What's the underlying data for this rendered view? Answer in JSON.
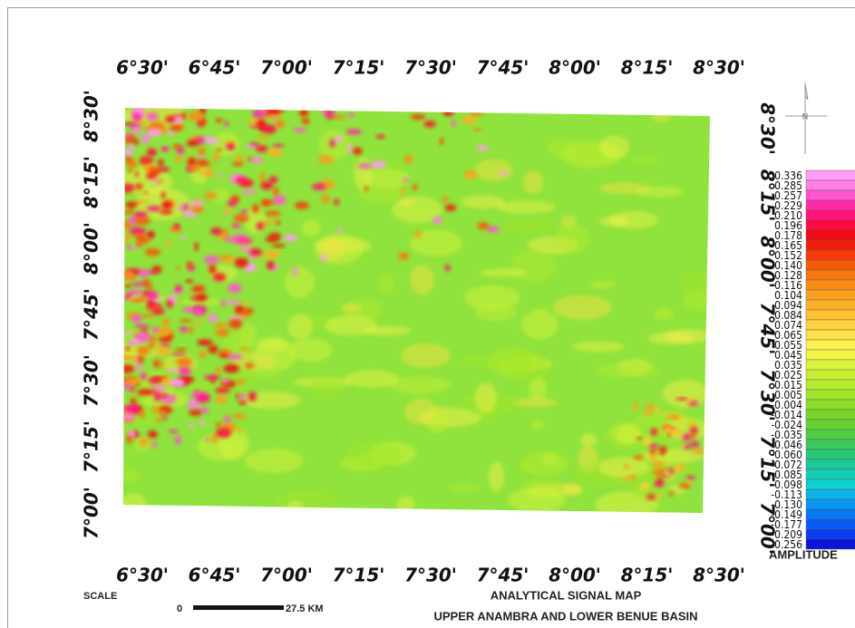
{
  "map": {
    "title": "ANALYTICAL SIGNAL MAP",
    "subtitle": "UPPER ANAMBRA AND LOWER BENUE BASIN",
    "longitude_labels": [
      "6°30'",
      "6°45'",
      "7°00'",
      "7°15'",
      "7°30'",
      "7°45'",
      "8°00'",
      "8°15'",
      "8°30'"
    ],
    "latitude_labels": [
      "8°30'",
      "8°15'",
      "8°00'",
      "7°45'",
      "7°30'",
      "7°15'",
      "7°00'"
    ]
  },
  "legend": {
    "title": "AMPLITUDE",
    "items": [
      {
        "label": "0.336",
        "color": "#ff9cf5"
      },
      {
        "label": "0.285",
        "color": "#ff7ee8"
      },
      {
        "label": "0.257",
        "color": "#ff55d0"
      },
      {
        "label": "0.229",
        "color": "#ff2aa8"
      },
      {
        "label": "0.210",
        "color": "#ff1478"
      },
      {
        "label": "0.196",
        "color": "#ff0a40"
      },
      {
        "label": "0.178",
        "color": "#f00a14"
      },
      {
        "label": "0.165",
        "color": "#f01e0a"
      },
      {
        "label": "0.152",
        "color": "#f53c0a"
      },
      {
        "label": "0.140",
        "color": "#f55a0a"
      },
      {
        "label": "0.128",
        "color": "#f8780f"
      },
      {
        "label": "0.116",
        "color": "#fa8c14"
      },
      {
        "label": "0.104",
        "color": "#fa9f1e"
      },
      {
        "label": "0.094",
        "color": "#fbb028"
      },
      {
        "label": "0.084",
        "color": "#fcc232"
      },
      {
        "label": "0.074",
        "color": "#fdd23c"
      },
      {
        "label": "0.065",
        "color": "#fee146"
      },
      {
        "label": "0.055",
        "color": "#fff050"
      },
      {
        "label": "0.045",
        "color": "#f0f546"
      },
      {
        "label": "0.035",
        "color": "#dcf53c"
      },
      {
        "label": "0.025",
        "color": "#c8f032"
      },
      {
        "label": "0.015",
        "color": "#b4eb2d"
      },
      {
        "label": "0.005",
        "color": "#a0e628"
      },
      {
        "label": "-0.004",
        "color": "#8cdc28"
      },
      {
        "label": "-0.014",
        "color": "#78d628"
      },
      {
        "label": "-0.024",
        "color": "#64d232"
      },
      {
        "label": "-0.035",
        "color": "#50cd46"
      },
      {
        "label": "-0.046",
        "color": "#3cc85a"
      },
      {
        "label": "-0.060",
        "color": "#28c878"
      },
      {
        "label": "-0.072",
        "color": "#1ec896"
      },
      {
        "label": "-0.085",
        "color": "#14cdb4"
      },
      {
        "label": "-0.098",
        "color": "#0fd2d2"
      },
      {
        "label": "-0.113",
        "color": "#0ab4e6"
      },
      {
        "label": "-0.130",
        "color": "#0a96f0"
      },
      {
        "label": "-0.149",
        "color": "#0a78f5"
      },
      {
        "label": "-0.177",
        "color": "#0a5af5"
      },
      {
        "label": "-0.209",
        "color": "#0a3cf0"
      },
      {
        "label": "-0.256",
        "color": "#0a14dc"
      }
    ]
  },
  "scale": {
    "label": "SCALE",
    "start": "0",
    "end": "27.5 KM"
  },
  "north_arrow": "N"
}
